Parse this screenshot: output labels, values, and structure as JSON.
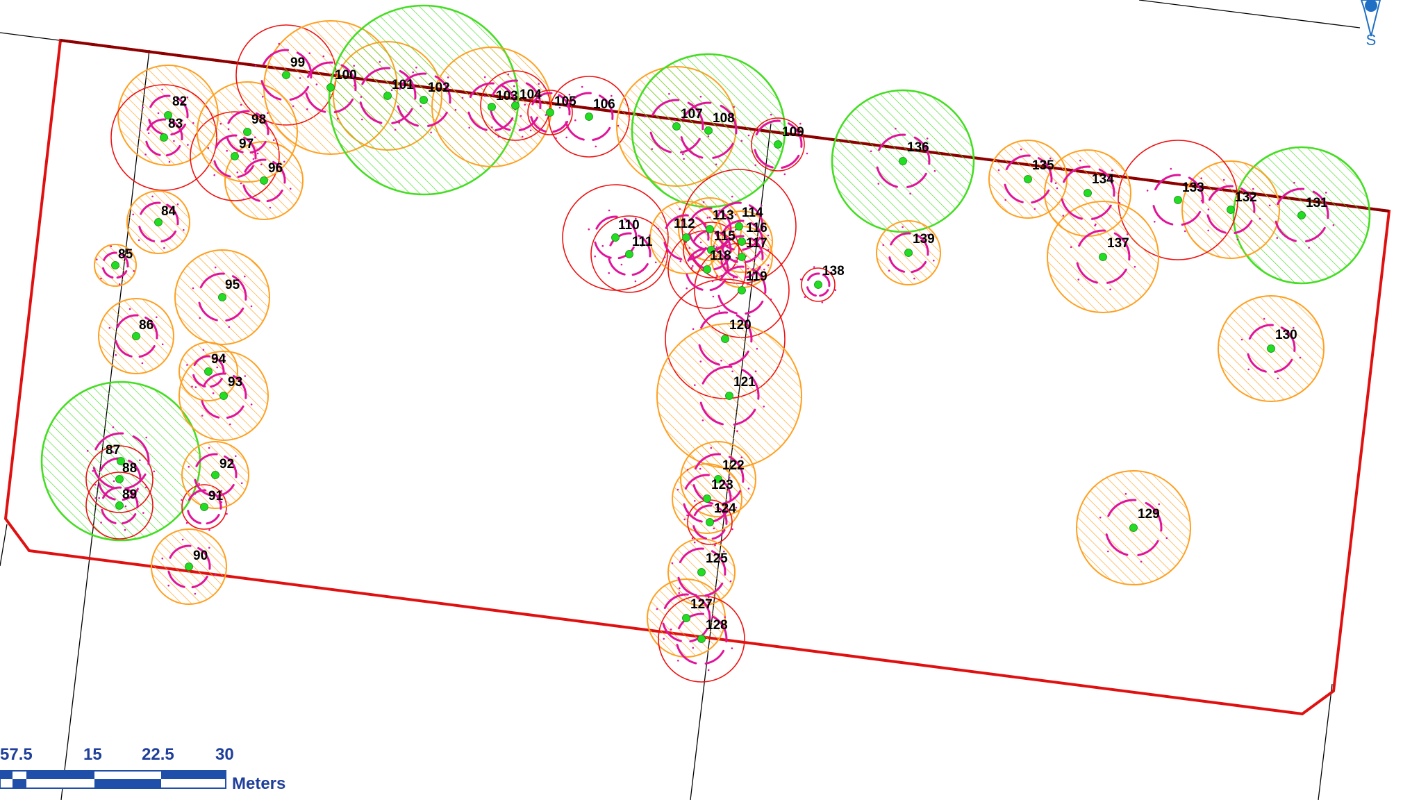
{
  "colors": {
    "boundary": "#e01010",
    "dark_line": "#8b0000",
    "parcel_line": "#000000",
    "green": "#44dd22",
    "orange": "#ffa020",
    "red": "#ee1111",
    "magenta": "#e0149a",
    "point": "#22dd22",
    "scale": "#1f4fa8"
  },
  "north_arrow": {
    "label": "S",
    "icon": "north-arrow-icon"
  },
  "scale_bar": {
    "tick_labels": [
      "57.5",
      "15",
      "22.5",
      "30"
    ],
    "unit": "Meters"
  },
  "trees": [
    {
      "id": "82",
      "cat": "orange"
    },
    {
      "id": "83",
      "cat": "red"
    },
    {
      "id": "84",
      "cat": "orange"
    },
    {
      "id": "85",
      "cat": "orange"
    },
    {
      "id": "86",
      "cat": "orange"
    },
    {
      "id": "87",
      "cat": "green"
    },
    {
      "id": "88",
      "cat": "red"
    },
    {
      "id": "89",
      "cat": "red"
    },
    {
      "id": "90",
      "cat": "orange"
    },
    {
      "id": "91",
      "cat": "red"
    },
    {
      "id": "92",
      "cat": "orange"
    },
    {
      "id": "93",
      "cat": "orange"
    },
    {
      "id": "94",
      "cat": "orange"
    },
    {
      "id": "95",
      "cat": "orange"
    },
    {
      "id": "96",
      "cat": "orange"
    },
    {
      "id": "97",
      "cat": "red"
    },
    {
      "id": "98",
      "cat": "orange"
    },
    {
      "id": "99",
      "cat": "red"
    },
    {
      "id": "100",
      "cat": "orange"
    },
    {
      "id": "101",
      "cat": "orange"
    },
    {
      "id": "102",
      "cat": "green"
    },
    {
      "id": "103",
      "cat": "orange"
    },
    {
      "id": "104",
      "cat": "red"
    },
    {
      "id": "105",
      "cat": "red"
    },
    {
      "id": "106",
      "cat": "red"
    },
    {
      "id": "107",
      "cat": "orange"
    },
    {
      "id": "108",
      "cat": "green"
    },
    {
      "id": "109",
      "cat": "red"
    },
    {
      "id": "110",
      "cat": "red"
    },
    {
      "id": "111",
      "cat": "red"
    },
    {
      "id": "112",
      "cat": "orange"
    },
    {
      "id": "113",
      "cat": "orange"
    },
    {
      "id": "114",
      "cat": "red"
    },
    {
      "id": "115",
      "cat": "red"
    },
    {
      "id": "116",
      "cat": "orange"
    },
    {
      "id": "117",
      "cat": "orange"
    },
    {
      "id": "118",
      "cat": "red"
    },
    {
      "id": "119",
      "cat": "red"
    },
    {
      "id": "120",
      "cat": "red"
    },
    {
      "id": "121",
      "cat": "orange"
    },
    {
      "id": "122",
      "cat": "orange"
    },
    {
      "id": "123",
      "cat": "orange"
    },
    {
      "id": "124",
      "cat": "red"
    },
    {
      "id": "125",
      "cat": "orange"
    },
    {
      "id": "127",
      "cat": "orange"
    },
    {
      "id": "128",
      "cat": "red"
    },
    {
      "id": "129",
      "cat": "orange"
    },
    {
      "id": "130",
      "cat": "orange"
    },
    {
      "id": "131",
      "cat": "green"
    },
    {
      "id": "132",
      "cat": "orange"
    },
    {
      "id": "133",
      "cat": "red"
    },
    {
      "id": "134",
      "cat": "orange"
    },
    {
      "id": "135",
      "cat": "orange"
    },
    {
      "id": "136",
      "cat": "green"
    },
    {
      "id": "137",
      "cat": "orange"
    },
    {
      "id": "138",
      "cat": "red"
    },
    {
      "id": "139",
      "cat": "orange"
    }
  ]
}
